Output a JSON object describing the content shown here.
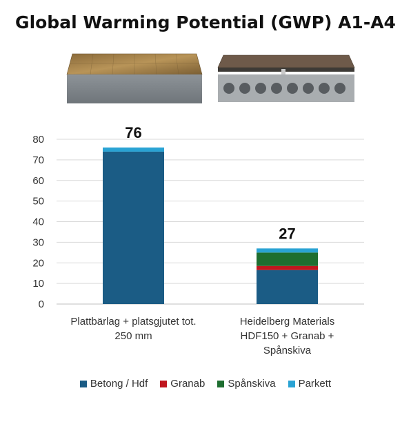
{
  "chart_data": {
    "type": "bar",
    "stacked": true,
    "title": "Global Warming Potential (GWP) A1-A4",
    "categories": [
      "Plattbärlag + platsgjutet tot. 250 mm",
      "Heidelberg Materials HDF150 + Granab + Spånskiva"
    ],
    "category_lines": [
      [
        "Plattbärlag + platsgjutet tot.",
        "250 mm"
      ],
      [
        "Heidelberg Materials",
        "HDF150 + Granab +",
        "Spånskiva"
      ]
    ],
    "totals": [
      "76",
      "27"
    ],
    "series": [
      {
        "name": "Betong / Hdf",
        "color": "#1b5c85",
        "values": [
          74,
          16.5
        ]
      },
      {
        "name": "Granab",
        "color": "#c0161e",
        "values": [
          0,
          2
        ]
      },
      {
        "name": "Spånskiva",
        "color": "#1e6e30",
        "values": [
          0,
          6.5
        ]
      },
      {
        "name": "Parkett",
        "color": "#2aa3d4",
        "values": [
          2,
          2
        ]
      }
    ],
    "yticks": [
      "0",
      "10",
      "20",
      "30",
      "40",
      "50",
      "60",
      "70",
      "80"
    ],
    "ylim": [
      0,
      80
    ],
    "grid": true,
    "legend_position": "bottom"
  }
}
